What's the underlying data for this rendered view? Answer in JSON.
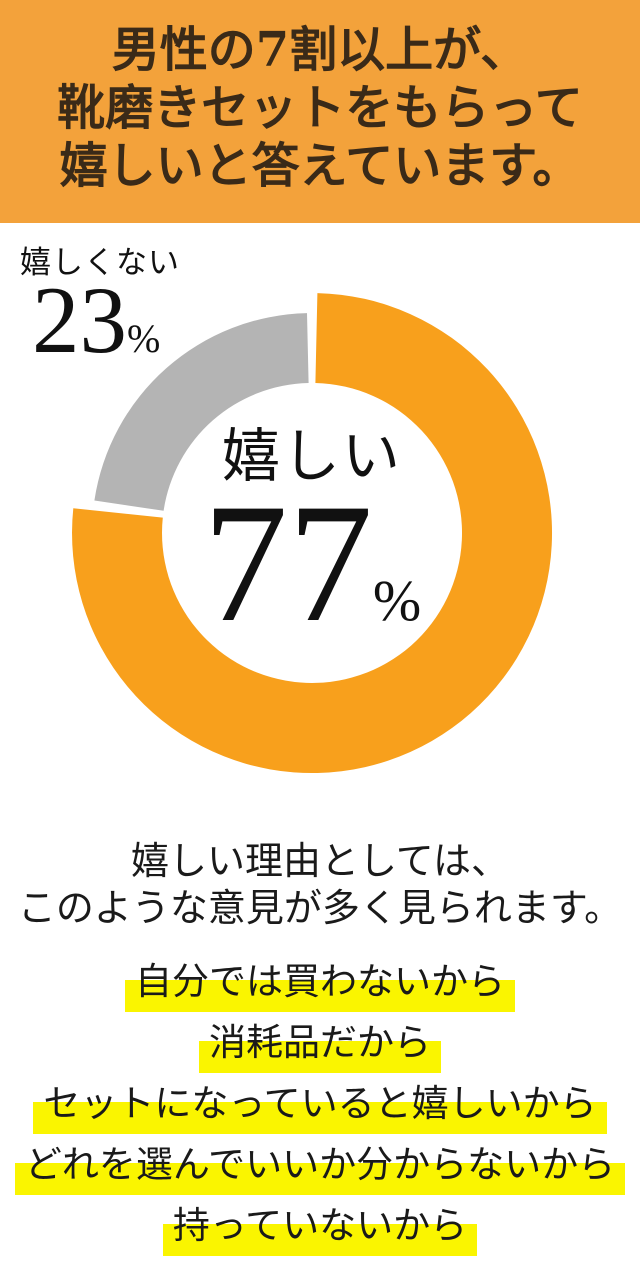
{
  "header": {
    "lines": [
      "男性の7割以上が、",
      "靴磨きセットをもらって",
      "嬉しいと答えています。"
    ],
    "bg_color": "#F3A23B",
    "text_color": "#3A2A18"
  },
  "chart_data": {
    "type": "pie",
    "subtype": "donut",
    "title": "男性の7割以上が、靴磨きセットをもらって嬉しいと答えています。",
    "direction": "clockwise",
    "start_angle_deg": 0,
    "legend": "none",
    "segments": [
      {
        "label": "嬉しい",
        "value": 77,
        "unit": "%",
        "color": "#F8A01C",
        "label_position": "center"
      },
      {
        "label": "嬉しくない",
        "value": 23,
        "unit": "%",
        "color": "#B4B4B4",
        "label_position": "outside-top-left"
      }
    ]
  },
  "body": {
    "intro_lines": [
      "嬉しい理由としては、",
      "このような意見が多く見られます。"
    ],
    "reasons": [
      "自分では買わないから",
      "消耗品だから",
      "セットになっていると嬉しいから",
      "どれを選んでいいか分からないから",
      "持っていないから"
    ],
    "highlight_color": "#FAF500",
    "text_color": "#1A1A1A"
  }
}
